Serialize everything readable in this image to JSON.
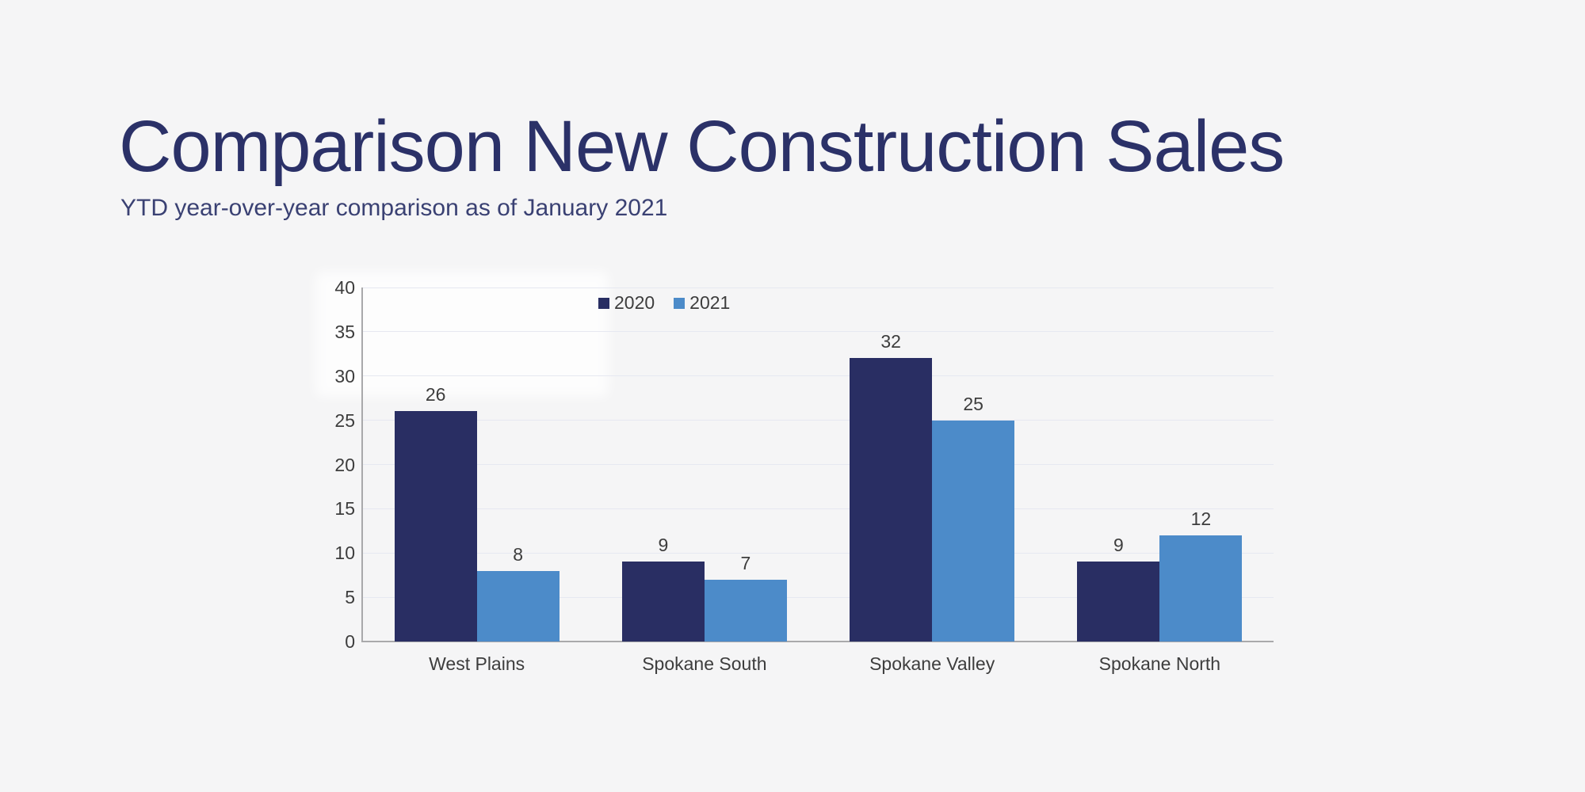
{
  "page": {
    "background_color": "#f5f5f6"
  },
  "header": {
    "title": "Comparison New Construction Sales",
    "subtitle": "YTD year-over-year comparison as of January 2021",
    "title_color": "#2b3168",
    "subtitle_color": "#3a4173"
  },
  "chart_data": {
    "type": "bar",
    "title": "",
    "xlabel": "",
    "ylabel": "",
    "categories": [
      "West Plains",
      "Spokane South",
      "Spokane Valley",
      "Spokane North"
    ],
    "series": [
      {
        "name": "2020",
        "color": "#292e63",
        "values": [
          26,
          9,
          32,
          9
        ]
      },
      {
        "name": "2021",
        "color": "#4c8bc9",
        "values": [
          8,
          7,
          25,
          12
        ]
      }
    ],
    "ylim": [
      0,
      40
    ],
    "yticks": [
      0,
      5,
      10,
      15,
      20,
      25,
      30,
      35,
      40
    ],
    "grid": true,
    "data_labels": true,
    "legend_position": "top",
    "gridline_color": "#e6e8f1",
    "axis_color": "#a9a9ab",
    "tick_label_color": "#3d3d3d"
  }
}
